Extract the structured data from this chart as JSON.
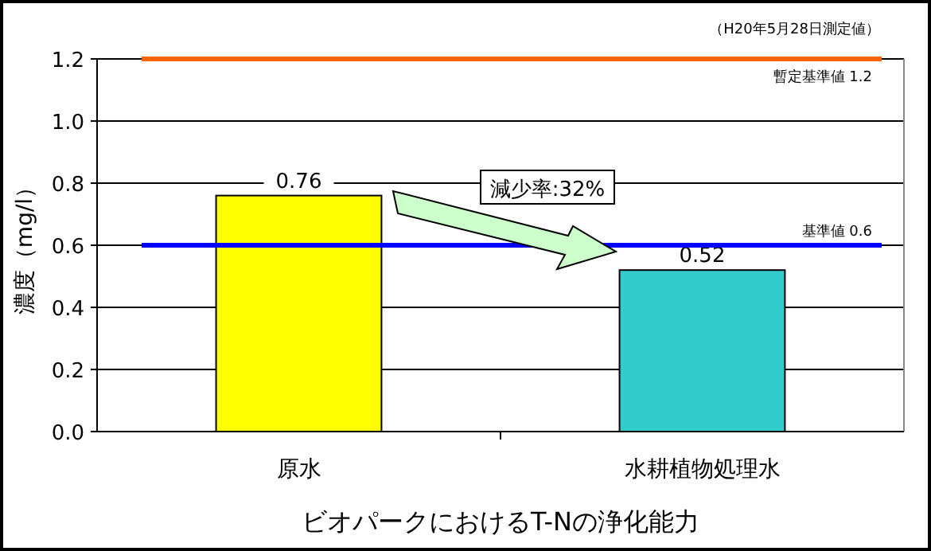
{
  "chart_data": {
    "type": "bar",
    "xlabel": "ビオパークにおけるT-Nの浄化能力",
    "ylabel": "濃度（mg/l）",
    "categories": [
      "原水",
      "水耕植物処理水"
    ],
    "values": [
      0.76,
      0.52
    ],
    "colors": [
      "#ffff00",
      "#33cccc"
    ],
    "ylim": [
      0,
      1.2
    ],
    "yticks": [
      {
        "value": 0,
        "label": "0.0"
      },
      {
        "value": 0.2,
        "label": "0.2"
      },
      {
        "value": 0.4,
        "label": "0.4"
      },
      {
        "value": 0.6,
        "label": "0.6"
      },
      {
        "value": 0.8,
        "label": "0.8"
      },
      {
        "value": 1,
        "label": "1.0"
      },
      {
        "value": 1.2,
        "label": "1.2"
      }
    ],
    "grid": "y",
    "data_labels": true,
    "ref_lines": [
      {
        "axis": "y",
        "value": 1.2,
        "label": "暫定基準値 1.2",
        "color": "#ff6600"
      },
      {
        "axis": "y",
        "value": 0.6,
        "label": "基準値 0.6",
        "color": "#0000ff"
      }
    ],
    "annotations": [
      "（H20年5月28日測定値）",
      "減少率:32%"
    ]
  }
}
